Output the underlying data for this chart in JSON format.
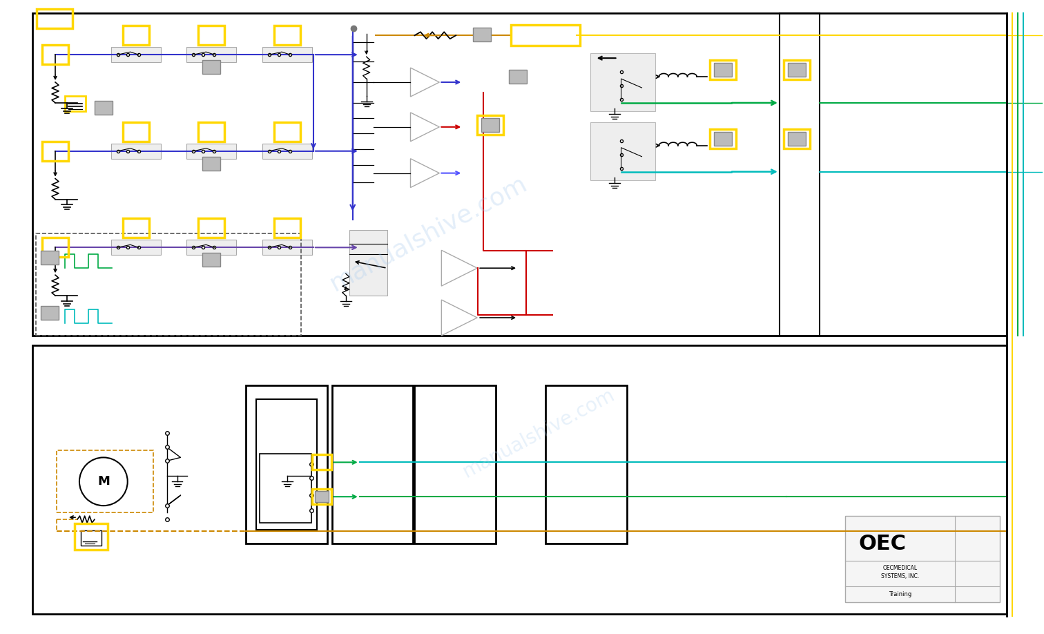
{
  "fig_width": 15.12,
  "fig_height": 9.18,
  "bg_color": "#ffffff",
  "watermark": "manualshive.com",
  "logo_text": "OEC",
  "logo_sub": "OECMEDICAL\nSYSTEMS, INC.\nTraining",
  "colors": {
    "blue": "#3333CC",
    "blue2": "#5555FF",
    "purple": "#6644AA",
    "red": "#CC0000",
    "green": "#00AA44",
    "teal": "#00BBBB",
    "orange": "#CC8800",
    "yellow": "#FFD700",
    "gray": "#AAAAAA",
    "darkgray": "#888888",
    "lightgray": "#CCCCCC",
    "black": "#000000"
  }
}
